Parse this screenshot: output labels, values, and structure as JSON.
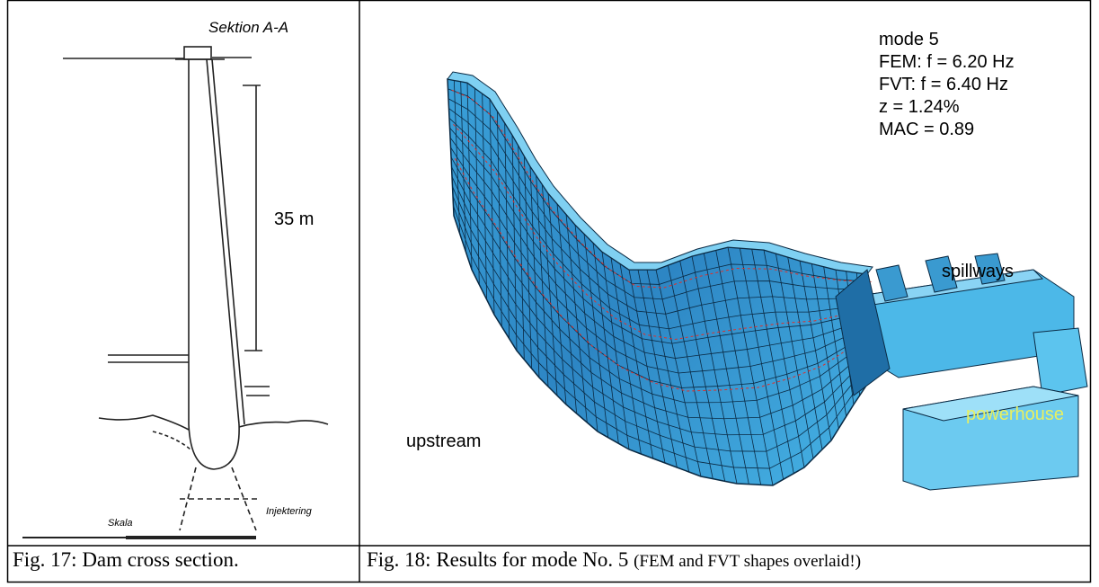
{
  "figures": [
    {
      "image": {
        "labels": [
          "Sektion A-A",
          "35 m",
          "Injektering",
          "Skala"
        ]
      },
      "caption": "Fig. 17: Dam cross section."
    },
    {
      "image": {
        "info": [
          "mode 5",
          "FEM: f = 6.20 Hz",
          "FVT:  f = 6.40 Hz",
          "z = 1.24%",
          "MAC = 0.89"
        ],
        "labels": {
          "spillways": "spillways",
          "powerhouse": "powerhouse",
          "upstream": "upstream"
        }
      },
      "caption": "Fig. 18: Results for mode No. 5",
      "caption_note": "(FEM and FVT shapes overlaid!)"
    }
  ]
}
